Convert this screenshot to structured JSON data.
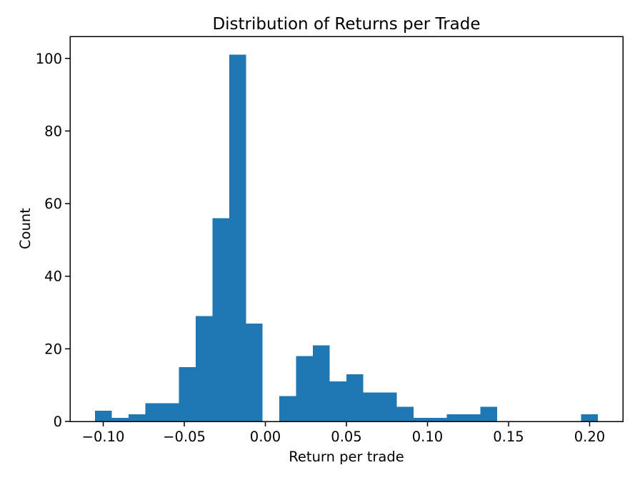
{
  "chart_data": {
    "type": "bar",
    "subtype": "histogram",
    "title": "Distribution of Returns per Trade",
    "xlabel": "Return per trade",
    "ylabel": "Count",
    "bar_color": "#1f77b4",
    "axis_color": "#000000",
    "background_color": "#ffffff",
    "grid": false,
    "legend": false,
    "bins": 30,
    "bin_edges": [
      -0.105,
      -0.094667,
      -0.084333,
      -0.074,
      -0.063667,
      -0.053333,
      -0.043,
      -0.032667,
      -0.022333,
      -0.012,
      -0.001667,
      0.008667,
      0.019,
      0.029333,
      0.039667,
      0.05,
      0.060333,
      0.070667,
      0.081,
      0.091333,
      0.101667,
      0.112,
      0.122333,
      0.132667,
      0.143,
      0.153333,
      0.163667,
      0.174,
      0.184333,
      0.194667,
      0.205
    ],
    "counts": [
      3,
      1,
      2,
      5,
      5,
      15,
      29,
      56,
      101,
      27,
      0,
      7,
      18,
      21,
      11,
      13,
      8,
      8,
      4,
      1,
      1,
      2,
      2,
      4,
      0,
      0,
      0,
      0,
      0,
      2
    ],
    "xlim": [
      -0.1205,
      0.2205
    ],
    "ylim": [
      0,
      106.05
    ],
    "x_ticks": [
      -0.1,
      -0.05,
      0.0,
      0.05,
      0.1,
      0.15,
      0.2
    ],
    "x_tick_labels": [
      "−0.10",
      "−0.05",
      "0.00",
      "0.05",
      "0.10",
      "0.15",
      "0.20"
    ],
    "y_ticks": [
      0,
      20,
      40,
      60,
      80,
      100
    ],
    "y_tick_labels": [
      "0",
      "20",
      "40",
      "60",
      "80",
      "100"
    ]
  }
}
